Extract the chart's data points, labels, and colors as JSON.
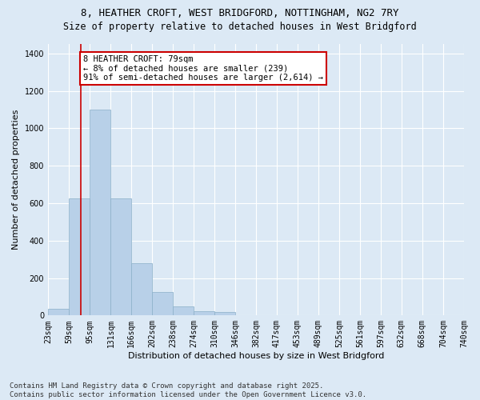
{
  "title_line1": "8, HEATHER CROFT, WEST BRIDGFORD, NOTTINGHAM, NG2 7RY",
  "title_line2": "Size of property relative to detached houses in West Bridgford",
  "xlabel": "Distribution of detached houses by size in West Bridgford",
  "ylabel": "Number of detached properties",
  "background_color": "#dce9f5",
  "bar_color": "#b8d0e8",
  "bar_edge_color": "#8aafc8",
  "grid_color": "#ffffff",
  "bin_labels": [
    "23sqm",
    "59sqm",
    "95sqm",
    "131sqm",
    "166sqm",
    "202sqm",
    "238sqm",
    "274sqm",
    "310sqm",
    "346sqm",
    "382sqm",
    "417sqm",
    "453sqm",
    "489sqm",
    "525sqm",
    "561sqm",
    "597sqm",
    "632sqm",
    "668sqm",
    "704sqm",
    "740sqm"
  ],
  "bin_edges": [
    23,
    59,
    95,
    131,
    166,
    202,
    238,
    274,
    310,
    346,
    382,
    417,
    453,
    489,
    525,
    561,
    597,
    632,
    668,
    704,
    740
  ],
  "bar_heights": [
    35,
    625,
    1100,
    625,
    280,
    125,
    50,
    22,
    20,
    0,
    0,
    0,
    0,
    0,
    0,
    0,
    0,
    0,
    0,
    0
  ],
  "ylim": [
    0,
    1450
  ],
  "yticks": [
    0,
    200,
    400,
    600,
    800,
    1000,
    1200,
    1400
  ],
  "property_size": 79,
  "red_line_color": "#cc0000",
  "annotation_text": "8 HEATHER CROFT: 79sqm\n← 8% of detached houses are smaller (239)\n91% of semi-detached houses are larger (2,614) →",
  "annotation_box_color": "#ffffff",
  "annotation_box_edge": "#cc0000",
  "footer_line1": "Contains HM Land Registry data © Crown copyright and database right 2025.",
  "footer_line2": "Contains public sector information licensed under the Open Government Licence v3.0.",
  "title_fontsize": 9,
  "subtitle_fontsize": 8.5,
  "axis_label_fontsize": 8,
  "tick_fontsize": 7,
  "annotation_fontsize": 7.5,
  "footer_fontsize": 6.5
}
